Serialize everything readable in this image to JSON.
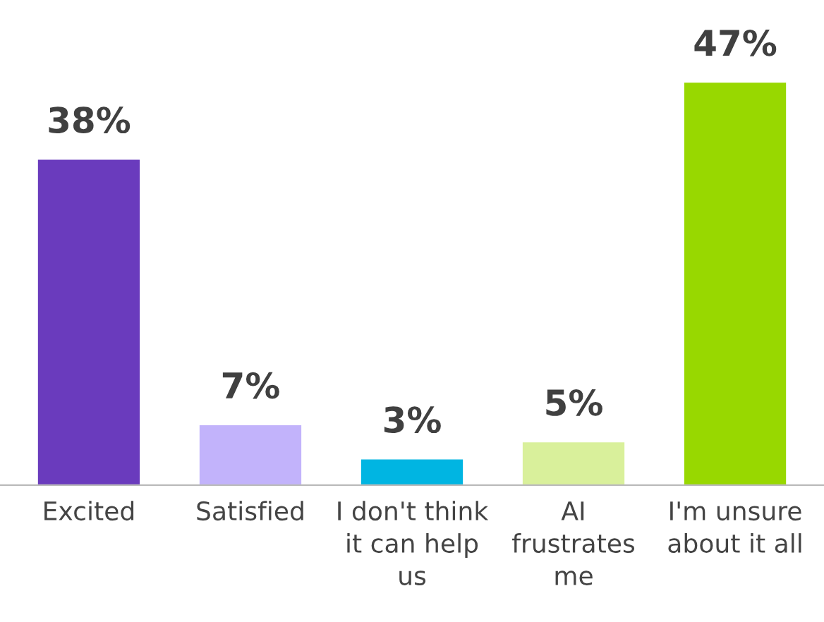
{
  "chart_data": {
    "type": "bar",
    "categories": [
      "Excited",
      "Satisfied",
      "I don't think\nit can help\nus",
      "AI\nfrustrates\nme",
      "I'm unsure\nabout it all"
    ],
    "values": [
      38,
      7,
      3,
      5,
      47
    ],
    "colors": [
      "#6a3bbd",
      "#c2b3fb",
      "#00b5e2",
      "#d9f09b",
      "#98d800"
    ],
    "value_labels": [
      "38%",
      "7%",
      "3%",
      "5%",
      "47%"
    ],
    "tick_labels": "x",
    "grid": false,
    "legend": false
  }
}
